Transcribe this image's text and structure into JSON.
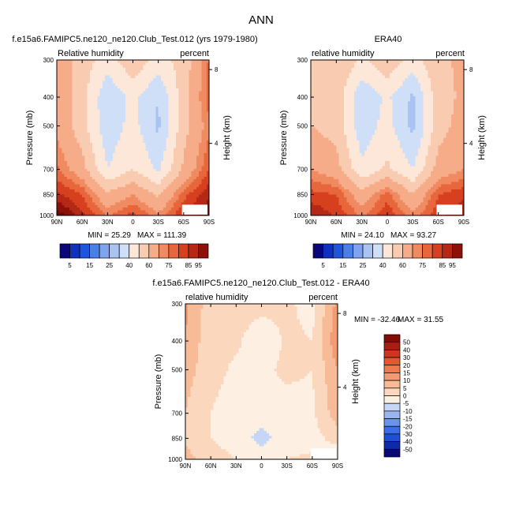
{
  "figure": {
    "title": "ANN",
    "x_ticks": [
      "90N",
      "60N",
      "30N",
      "0",
      "30S",
      "60S",
      "90S"
    ],
    "p_ticks": [
      "300",
      "400",
      "500",
      "700",
      "850",
      "1000"
    ],
    "h_ticks": [
      "8",
      "4"
    ]
  },
  "colors": {
    "abs_levels": [
      "#08087a",
      "#1030c0",
      "#1f54dd",
      "#4a7fe6",
      "#7fa3ee",
      "#a9c4f2",
      "#cfdff7",
      "#fde7d8",
      "#f9cbb0",
      "#f6ac88",
      "#f08a60",
      "#e8663c",
      "#d6401f",
      "#b52816",
      "#8c1209",
      "#6b0a05"
    ],
    "abs_legend": [
      "#08087a",
      "#1030c0",
      "#1f54dd",
      "#4a7fe6",
      "#7fa3ee",
      "#a9c4f2",
      "#cfdff7",
      "#fde7d8",
      "#f9cbb0",
      "#f6ac88",
      "#f08a60",
      "#e8663c",
      "#d6401f",
      "#b52816",
      "#8c1209"
    ],
    "diff_legend": [
      "#08087a",
      "#0f2aa8",
      "#1f4fd8",
      "#3a6ee6",
      "#6a93ee",
      "#9ab6f2",
      "#c5d6f7",
      "#fdf0e2",
      "#fbd7bd",
      "#f8bb98",
      "#f59b73",
      "#ef7a4f",
      "#e45733",
      "#cc3720",
      "#a81e10",
      "#820c06"
    ],
    "missing": "#ffffff"
  },
  "panels": [
    {
      "id": "model",
      "title": "f.e15a6.FAMIPC5.ne120_ne120.Club_Test.012 (yrs 1979-1980)",
      "left_label": "Relative humidity",
      "right_label": "percent",
      "y_label": "Pressure (mb)",
      "y2_label": "Height (km)",
      "min_label": "MIN = 25.29",
      "max_label": "MAX = 111.39",
      "legend_labels": [
        "5",
        "15",
        "25",
        "40",
        "60",
        "75",
        "85",
        "95"
      ]
    },
    {
      "id": "obs",
      "title": "ERA40",
      "left_label": "relative humidity",
      "right_label": "percent",
      "y_label": "Pressure (mb)",
      "y2_label": "Height (km)",
      "min_label": "MIN = 24.10",
      "max_label": "MAX = 93.27",
      "legend_labels": [
        "5",
        "15",
        "25",
        "40",
        "60",
        "75",
        "85",
        "95"
      ]
    },
    {
      "id": "diff",
      "title": "f.e15a6.FAMIPC5.ne120_ne120.Club_Test.012 - ERA40",
      "left_label": "relative humidity",
      "right_label": "percent",
      "y_label": "Pressure (mb)",
      "y2_label": "Height (km)",
      "min_label": "MIN = -32.46",
      "max_label": "MAX =  31.55",
      "legend_labels": [
        "50",
        "40",
        "30",
        "20",
        "15",
        "10",
        "5",
        "0",
        "-5",
        "-10",
        "-15",
        "-20",
        "-30",
        "-40",
        "-50"
      ]
    }
  ],
  "chart_data": [
    {
      "type": "heatmap",
      "title": "f.e15a6.FAMIPC5.ne120_ne120.Club_Test.012 (yrs 1979-1980)",
      "variable": "Relative humidity",
      "units": "percent",
      "xlabel": "",
      "ylabel": "Pressure (mb)",
      "y2label": "Height (km)",
      "x": [
        90,
        60,
        30,
        0,
        -30,
        -60,
        -90
      ],
      "x_tick_labels": [
        "90N",
        "60N",
        "30N",
        "0",
        "30S",
        "60S",
        "90S"
      ],
      "y": [
        300,
        400,
        500,
        700,
        850,
        1000
      ],
      "y_scale": "log",
      "ylim": [
        1000,
        300
      ],
      "levels": [
        5,
        10,
        15,
        20,
        25,
        30,
        40,
        50,
        60,
        70,
        75,
        80,
        85,
        90,
        95
      ],
      "values": [
        [
          68,
          55,
          45,
          58,
          46,
          54,
          76
        ],
        [
          68,
          54,
          32,
          43,
          30,
          56,
          78
        ],
        [
          68,
          54,
          33,
          44,
          28,
          56,
          74
        ],
        [
          76,
          64,
          40,
          50,
          38,
          62,
          80
        ],
        [
          86,
          80,
          62,
          70,
          58,
          78,
          89
        ],
        [
          99,
          86,
          74,
          82,
          72,
          85,
          94
        ]
      ],
      "min": 25.29,
      "max": 111.39
    },
    {
      "type": "heatmap",
      "title": "ERA40",
      "variable": "relative humidity",
      "units": "percent",
      "xlabel": "",
      "ylabel": "Pressure (mb)",
      "y2label": "Height (km)",
      "x": [
        90,
        60,
        30,
        0,
        -30,
        -60,
        -90
      ],
      "x_tick_labels": [
        "90N",
        "60N",
        "30N",
        "0",
        "30S",
        "60S",
        "90S"
      ],
      "y": [
        300,
        400,
        500,
        700,
        850,
        1000
      ],
      "y_scale": "log",
      "ylim": [
        1000,
        300
      ],
      "levels": [
        5,
        10,
        15,
        20,
        25,
        30,
        40,
        50,
        60,
        70,
        75,
        80,
        85,
        90,
        95
      ],
      "values": [
        [
          55,
          60,
          48,
          58,
          46,
          58,
          62
        ],
        [
          58,
          56,
          32,
          42,
          28,
          56,
          62
        ],
        [
          60,
          56,
          34,
          44,
          27,
          56,
          64
        ],
        [
          70,
          64,
          42,
          52,
          40,
          64,
          70
        ],
        [
          82,
          80,
          64,
          78,
          60,
          80,
          84
        ],
        [
          90,
          84,
          74,
          84,
          72,
          84,
          88
        ]
      ],
      "min": 24.1,
      "max": 93.27
    },
    {
      "type": "heatmap",
      "title": "f.e15a6.FAMIPC5.ne120_ne120.Club_Test.012 - ERA40",
      "variable": "relative humidity",
      "units": "percent",
      "xlabel": "",
      "ylabel": "Pressure (mb)",
      "y2label": "Height (km)",
      "x": [
        90,
        60,
        30,
        0,
        -30,
        -60,
        -90
      ],
      "x_tick_labels": [
        "90N",
        "60N",
        "30N",
        "0",
        "30S",
        "60S",
        "90S"
      ],
      "y": [
        300,
        400,
        500,
        700,
        850,
        1000
      ],
      "y_scale": "log",
      "ylim": [
        1000,
        300
      ],
      "levels": [
        -50,
        -40,
        -30,
        -20,
        -15,
        -10,
        -5,
        0,
        5,
        10,
        15,
        20,
        30,
        40,
        50
      ],
      "values": [
        [
          11,
          2,
          3,
          2,
          1,
          -2,
          12
        ],
        [
          10,
          1,
          1,
          -4,
          1,
          0,
          14
        ],
        [
          7,
          2,
          -1,
          -1,
          1,
          0,
          10
        ],
        [
          5,
          0,
          -3,
          -2,
          -2,
          -1,
          8
        ],
        [
          4,
          0,
          -2,
          -7,
          -2,
          -2,
          2
        ],
        [
          7,
          2,
          0,
          -2,
          0,
          1,
          -5
        ]
      ],
      "min": -32.46,
      "max": 31.55
    }
  ]
}
